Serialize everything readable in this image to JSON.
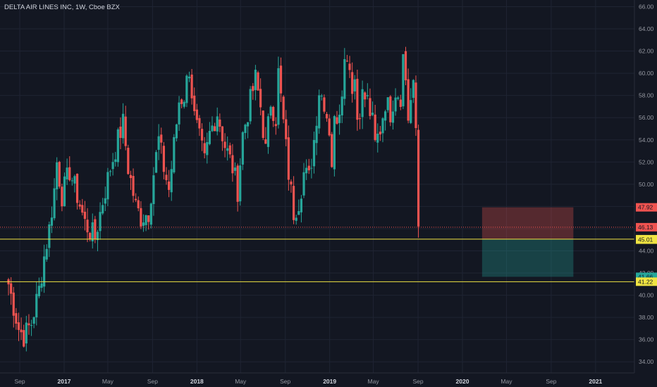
{
  "chart_data": {
    "type": "candlestick",
    "title": "DELTA AIR LINES INC, 1W, Cboe BZX",
    "interval": "1W",
    "y_axis": {
      "position": "right",
      "min": 33.0,
      "max": 66.6,
      "ticks": [
        "34.00",
        "36.00",
        "38.00",
        "40.00",
        "42.00",
        "44.00",
        "46.00",
        "48.00",
        "50.00",
        "52.00",
        "54.00",
        "56.00",
        "58.00",
        "60.00",
        "62.00",
        "64.00",
        "66.00"
      ]
    },
    "x_axis": {
      "ticks": [
        {
          "label": "Sep",
          "date": "2016-09-01",
          "bold": false
        },
        {
          "label": "2017",
          "date": "2017-01-01",
          "bold": true
        },
        {
          "label": "May",
          "date": "2017-05-01",
          "bold": false
        },
        {
          "label": "Sep",
          "date": "2017-09-01",
          "bold": false
        },
        {
          "label": "2018",
          "date": "2018-01-01",
          "bold": true
        },
        {
          "label": "May",
          "date": "2018-05-01",
          "bold": false
        },
        {
          "label": "Sep",
          "date": "2018-09-01",
          "bold": false
        },
        {
          "label": "2019",
          "date": "2019-01-01",
          "bold": true
        },
        {
          "label": "May",
          "date": "2019-05-01",
          "bold": false
        },
        {
          "label": "Sep",
          "date": "2019-09-01",
          "bold": false
        },
        {
          "label": "2020",
          "date": "2020-01-01",
          "bold": true
        },
        {
          "label": "May",
          "date": "2020-05-01",
          "bold": false
        },
        {
          "label": "Sep",
          "date": "2020-09-01",
          "bold": false
        },
        {
          "label": "2021",
          "date": "2021-01-01",
          "bold": true
        }
      ]
    },
    "grid": true,
    "colors": {
      "background": "#131722",
      "grid": "#1f2433",
      "up": "#26a69a",
      "down": "#ef5350",
      "axis_text": "#9598a1",
      "horizontal_lines": "#f0e442",
      "current_price_line": "#ef5350",
      "loss_zone": "rgba(239,83,80,0.30)",
      "profit_zone": "rgba(38,166,154,0.30)"
    },
    "horizontal_lines": [
      {
        "value": 45.05,
        "label": "45.05",
        "style": "solid"
      },
      {
        "value": 41.22,
        "label": "41.22",
        "style": "solid"
      }
    ],
    "current_price": {
      "value": 46.13,
      "label": "46.13"
    },
    "price_tags": [
      {
        "value": 47.92,
        "label": "47.92",
        "bg": "#ef5350",
        "fg": "#131722"
      },
      {
        "value": 46.13,
        "label": "46.13",
        "bg": "#ef5350",
        "fg": "#131722"
      },
      {
        "value": 45.05,
        "label": "45.05",
        "bg": "#f0e442",
        "fg": "#131722"
      },
      {
        "value": 45.01,
        "label": "45.01",
        "bg": "#f0e442",
        "fg": "#131722"
      },
      {
        "value": 41.66,
        "label": "41.66",
        "bg": "#26a69a",
        "fg": "#131722"
      },
      {
        "value": 41.22,
        "label": "41.22",
        "bg": "#f0e442",
        "fg": "#131722"
      }
    ],
    "position_tool": {
      "type": "short",
      "start_date": "2020-02-24",
      "end_date": "2020-11-01",
      "entry": 45.05,
      "stop": 47.92,
      "target": 41.66
    },
    "ohlc_weekly": {
      "start_date": "2016-08-01",
      "weeks": 186,
      "anchors": [
        [
          0,
          41.0
        ],
        [
          4,
          37.0
        ],
        [
          6,
          36.3
        ],
        [
          9,
          37.5
        ],
        [
          12,
          40.5
        ],
        [
          14,
          43.5
        ],
        [
          16,
          46.0
        ],
        [
          18,
          49.5
        ],
        [
          19,
          52.0
        ],
        [
          21,
          49.0
        ],
        [
          24,
          51.2
        ],
        [
          27,
          49.0
        ],
        [
          30,
          46.5
        ],
        [
          32,
          45.8
        ],
        [
          34,
          45.2
        ],
        [
          37,
          48.5
        ],
        [
          40,
          51.5
        ],
        [
          43,
          54.0
        ],
        [
          45,
          55.5
        ],
        [
          47,
          51.5
        ],
        [
          50,
          48.0
        ],
        [
          52,
          47.0
        ],
        [
          55,
          47.5
        ],
        [
          57,
          51.0
        ],
        [
          59,
          54.0
        ],
        [
          61,
          51.5
        ],
        [
          63,
          49.5
        ],
        [
          65,
          53.5
        ],
        [
          67,
          57.5
        ],
        [
          69,
          58.0
        ],
        [
          71,
          60.5
        ],
        [
          73,
          56.0
        ],
        [
          75,
          54.0
        ],
        [
          77,
          52.0
        ],
        [
          79,
          54.5
        ],
        [
          82,
          56.5
        ],
        [
          85,
          53.5
        ],
        [
          88,
          51.5
        ],
        [
          90,
          49.5
        ],
        [
          92,
          54.5
        ],
        [
          95,
          57.5
        ],
        [
          97,
          59.5
        ],
        [
          99,
          57.0
        ],
        [
          101,
          53.0
        ],
        [
          103,
          57.5
        ],
        [
          105,
          56.0
        ],
        [
          106,
          60.0
        ],
        [
          108,
          55.5
        ],
        [
          110,
          51.0
        ],
        [
          112,
          47.5
        ],
        [
          114,
          48.5
        ],
        [
          116,
          51.0
        ],
        [
          118,
          50.5
        ],
        [
          120,
          54.0
        ],
        [
          122,
          58.5
        ],
        [
          124,
          57.5
        ],
        [
          126,
          55.0
        ],
        [
          127,
          52.0
        ],
        [
          128,
          55.5
        ],
        [
          130,
          57.0
        ],
        [
          132,
          61.0
        ],
        [
          133,
          62.0
        ],
        [
          135,
          59.0
        ],
        [
          136,
          59.5
        ],
        [
          137,
          56.0
        ],
        [
          139,
          58.0
        ],
        [
          141,
          57.5
        ],
        [
          143,
          55.5
        ],
        [
          144,
          53.5
        ],
        [
          146,
          55.0
        ],
        [
          148,
          57.5
        ],
        [
          150,
          56.5
        ],
        [
          152,
          58.5
        ],
        [
          154,
          58.0
        ],
        [
          155,
          61.5
        ],
        [
          156,
          59.5
        ],
        [
          157,
          56.0
        ],
        [
          158,
          57.5
        ],
        [
          159,
          58.5
        ],
        [
          160,
          55.0
        ],
        [
          161,
          46.2
        ]
      ],
      "seed": 7
    }
  }
}
